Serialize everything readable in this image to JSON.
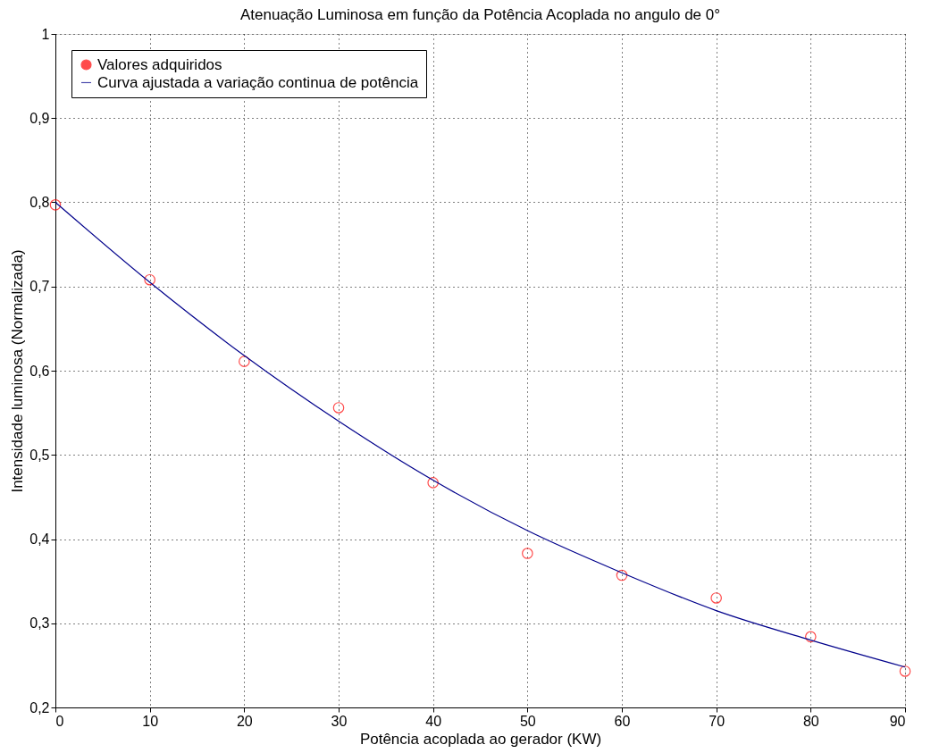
{
  "chart_data": {
    "type": "scatter",
    "title": "Atenuação Luminosa em função da Potência Acoplada no angulo de 0°",
    "xlabel": "Potência acoplada ao gerador (KW)",
    "ylabel": "Intensidade luminosa (Normalizada)",
    "xlim": [
      0,
      90
    ],
    "xticks": [
      0,
      10,
      20,
      30,
      40,
      50,
      60,
      70,
      80,
      90
    ],
    "ylim": [
      0.2,
      1
    ],
    "yticks": [
      {
        "value": 0.2,
        "label": "0,2"
      },
      {
        "value": 0.3,
        "label": "0,3"
      },
      {
        "value": 0.4,
        "label": "0,4"
      },
      {
        "value": 0.5,
        "label": "0,5"
      },
      {
        "value": 0.6,
        "label": "0,6"
      },
      {
        "value": 0.7,
        "label": "0,7"
      },
      {
        "value": 0.8,
        "label": "0,8"
      },
      {
        "value": 0.9,
        "label": "0,9"
      },
      {
        "value": 1,
        "label": "1"
      }
    ],
    "grid": true,
    "legend": "top left",
    "series": [
      {
        "name": "Valores adquiridos",
        "marker": "circle",
        "color": "#ff0000",
        "x": [
          0,
          10,
          20,
          30,
          40,
          50,
          60,
          70,
          80,
          90
        ],
        "values": [
          0.797,
          0.708,
          0.611,
          0.556,
          0.467,
          0.383,
          0.357,
          0.33,
          0.284,
          0.243
        ]
      },
      {
        "name": "Curva ajustada a variação continua de potência",
        "type": "line",
        "line_style": "solid",
        "color": "#00008b",
        "x": [
          0,
          10,
          20,
          30,
          40,
          50,
          60,
          70,
          80,
          90
        ],
        "values": [
          0.8,
          0.705,
          0.618,
          0.54,
          0.47,
          0.41,
          0.36,
          0.315,
          0.28,
          0.248
        ]
      }
    ]
  }
}
